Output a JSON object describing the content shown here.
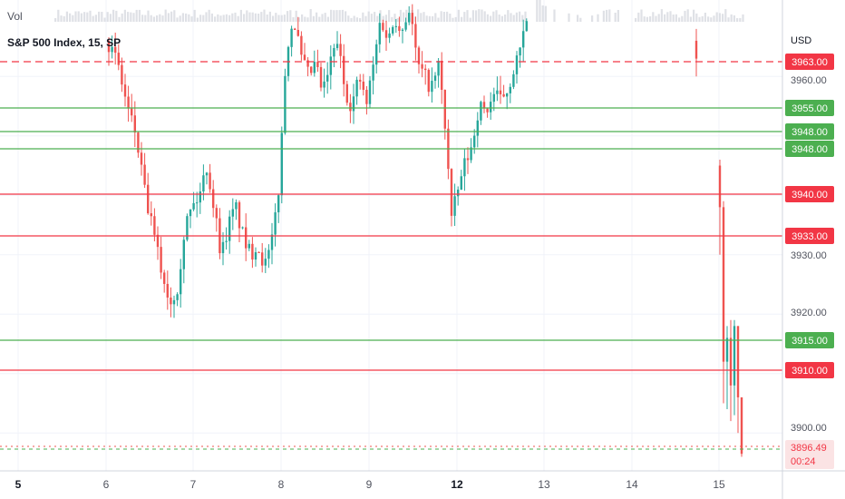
{
  "header": {
    "volume_label": "Vol",
    "symbol": "S&P 500 Index, 15, SP"
  },
  "chart_data": {
    "type": "candlestick",
    "currency": "USD",
    "y_ticks": [
      "3960.00",
      "3930.00",
      "3920.00",
      "3900.00"
    ],
    "x_ticks": [
      "5",
      "6",
      "7",
      "8",
      "9",
      "12",
      "13",
      "14",
      "15"
    ],
    "last_price": "3896.49",
    "countdown": "00:24",
    "horizontal_levels": [
      {
        "value": "3963.00",
        "color": "#f23645",
        "style": "dashed"
      },
      {
        "value": "3955.00",
        "color": "#4caf50",
        "style": "solid"
      },
      {
        "value": "3948.00",
        "color": "#4caf50",
        "style": "solid"
      },
      {
        "value": "3948.00",
        "color": "#4caf50",
        "style": "solid"
      },
      {
        "value": "3940.00",
        "color": "#f23645",
        "style": "solid"
      },
      {
        "value": "3933.00",
        "color": "#f23645",
        "style": "solid"
      },
      {
        "value": "3915.00",
        "color": "#4caf50",
        "style": "solid"
      },
      {
        "value": "3910.00",
        "color": "#f23645",
        "style": "solid"
      }
    ],
    "colors": {
      "up": "#26a69a",
      "down": "#ef5350",
      "grid": "#f0f3fa"
    }
  }
}
